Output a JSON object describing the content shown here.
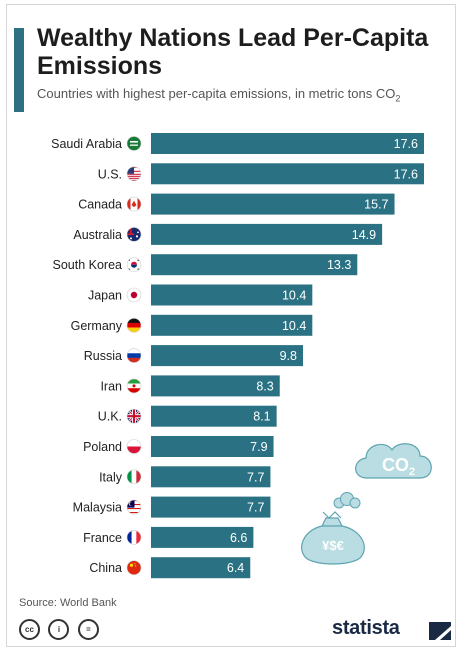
{
  "title": "Wealthy Nations Lead Per-Capita Emissions",
  "subtitle": {
    "text": "Countries with highest per-capita emissions, in metric tons CO",
    "subscript": "2"
  },
  "chart_data": {
    "type": "bar",
    "orientation": "horizontal",
    "categories": [
      "Saudi Arabia",
      "U.S.",
      "Canada",
      "Australia",
      "South Korea",
      "Japan",
      "Germany",
      "Russia",
      "Iran",
      "U.K.",
      "Poland",
      "Italy",
      "Malaysia",
      "France",
      "China"
    ],
    "values": [
      17.6,
      17.6,
      15.7,
      14.9,
      13.3,
      10.4,
      10.4,
      9.8,
      8.3,
      8.1,
      7.9,
      7.7,
      7.7,
      6.6,
      6.4
    ],
    "data_label_position": "inside-end",
    "title": "Wealthy Nations Lead Per-Capita Emissions",
    "xlabel": "",
    "ylabel": "",
    "xlim": [
      0,
      17.6
    ],
    "grid": false,
    "legend": "none"
  },
  "icons": {
    "flags": [
      "saudi-arabia-flag-icon",
      "us-flag-icon",
      "canada-flag-icon",
      "australia-flag-icon",
      "south-korea-flag-icon",
      "japan-flag-icon",
      "germany-flag-icon",
      "russia-flag-icon",
      "iran-flag-icon",
      "uk-flag-icon",
      "poland-flag-icon",
      "italy-flag-icon",
      "malaysia-flag-icon",
      "france-flag-icon",
      "china-flag-icon"
    ],
    "illustration": "co2-cloud-money-bag-icon",
    "license": [
      "creative-commons-icon",
      "attribution-icon",
      "no-derivatives-icon"
    ],
    "brand": "statista-logo-icon"
  },
  "illustration": {
    "cloud_label": "CO",
    "cloud_label_sub": "2",
    "bag_label": "¥$€"
  },
  "footer": {
    "source": "Source: World Bank",
    "brand": "statista",
    "license_labels": [
      "cc",
      "i",
      "="
    ]
  },
  "colors": {
    "bar": "#2a7283",
    "accent": "#2f6f83",
    "illustration": "#b9dde2",
    "illustration_stroke": "#5fa4b1",
    "brand": "#1b2a44"
  }
}
